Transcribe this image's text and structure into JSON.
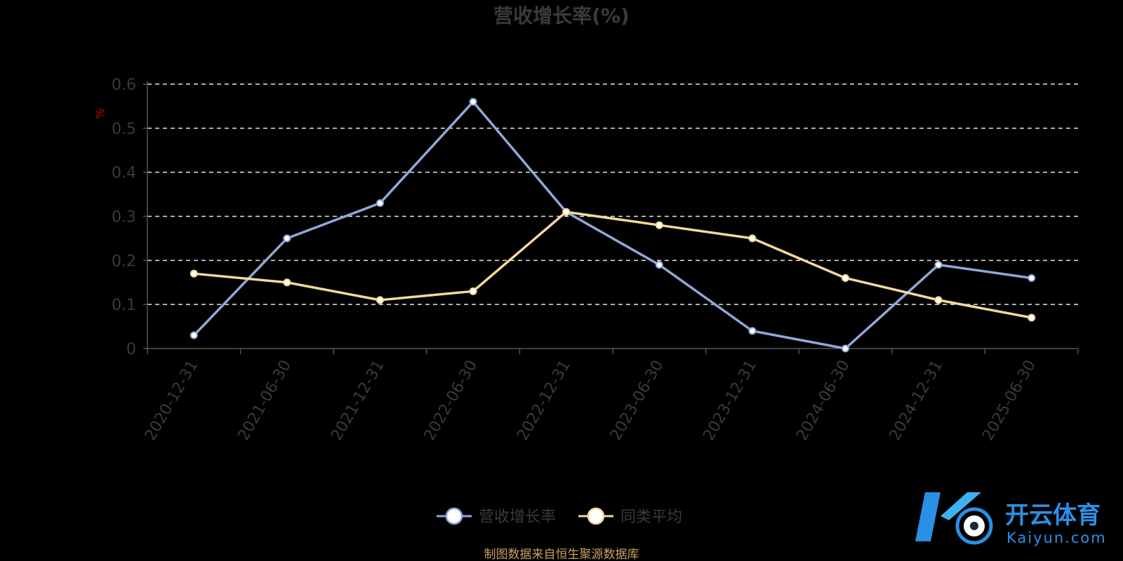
{
  "chart_data": {
    "type": "line",
    "title": "营收增长率(%)",
    "yunit": "%",
    "categories": [
      "2020-12-31",
      "2021-06-30",
      "2021-12-31",
      "2022-06-30",
      "2022-12-31",
      "2023-06-30",
      "2023-12-31",
      "2024-06-30",
      "2024-12-31",
      "2025-06-30"
    ],
    "series": [
      {
        "name": "营收增长率",
        "color": "#8fa8d8",
        "values": [
          0.03,
          0.25,
          0.33,
          0.56,
          0.31,
          0.19,
          0.04,
          0.0,
          0.19,
          0.16
        ]
      },
      {
        "name": "同类平均",
        "color": "#f5d89a",
        "values": [
          0.17,
          0.15,
          0.11,
          0.13,
          0.31,
          0.28,
          0.25,
          0.16,
          0.11,
          0.07
        ]
      }
    ],
    "yticks": [
      "0",
      "0.1",
      "0.2",
      "0.3",
      "0.4",
      "0.5",
      "0.6"
    ],
    "ylim": [
      0,
      0.6
    ],
    "grid": true,
    "legend_position": "bottom-center"
  },
  "source_note": "制图数据来自恒生聚源数据库",
  "watermark": {
    "cn": "开云体育",
    "en": "Kaiyun.com"
  }
}
